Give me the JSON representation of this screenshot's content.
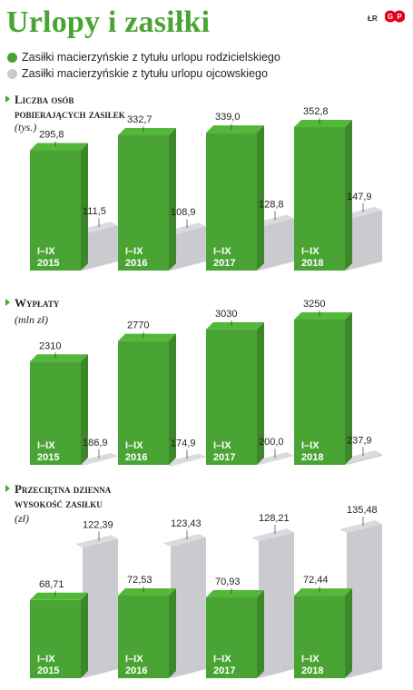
{
  "header": {
    "title": "Urlopy i zasiłki",
    "credit": "ŁR",
    "logo_text": "GP"
  },
  "legend": [
    {
      "label": "Zasiłki macierzyńskie z tytułu urlopu rodzicielskiego",
      "color": "#4aa433"
    },
    {
      "label": "Zasiłki macierzyńskie z tytułu urlopu ojcowskiego",
      "color": "#c9cbcf"
    }
  ],
  "chart_data": [
    {
      "type": "bar",
      "title_lines": [
        "Liczba osób",
        "pobierających zasiłek"
      ],
      "unit": "(tys.)",
      "categories": [
        [
          "I–IX",
          "2015"
        ],
        [
          "I–IX",
          "2016"
        ],
        [
          "I–IX",
          "2017"
        ],
        [
          "I–IX",
          "2018"
        ]
      ],
      "series": [
        {
          "name": "Zasiłki macierzyńskie z tytułu urlopu rodzicielskiego",
          "values": [
            295.8,
            332.7,
            339.0,
            352.8
          ],
          "labels": [
            "295,8",
            "332,7",
            "339,0",
            "352,8"
          ]
        },
        {
          "name": "Zasiłki macierzyńskie z tytułu urlopu ojcowskiego",
          "values": [
            111.5,
            108.9,
            128.8,
            147.9
          ],
          "labels": [
            "111,5",
            "108,9",
            "128,8",
            "147,9"
          ]
        }
      ]
    },
    {
      "type": "bar",
      "title_lines": [
        "Wypłaty"
      ],
      "unit": "(mln zł)",
      "categories": [
        [
          "I–IX",
          "2015"
        ],
        [
          "I–IX",
          "2016"
        ],
        [
          "I–IX",
          "2017"
        ],
        [
          "I–IX",
          "2018"
        ]
      ],
      "series": [
        {
          "name": "Zasiłki macierzyńskie z tytułu urlopu rodzicielskiego",
          "values": [
            2310,
            2770,
            3030,
            3250
          ],
          "labels": [
            "2310",
            "2770",
            "3030",
            "3250"
          ]
        },
        {
          "name": "Zasiłki macierzyńskie z tytułu urlopu ojcowskiego",
          "values": [
            186.9,
            174.9,
            200.0,
            237.9
          ],
          "labels": [
            "186,9",
            "174,9",
            "200,0",
            "237,9"
          ]
        }
      ]
    },
    {
      "type": "bar",
      "title_lines": [
        "Przeciętna dzienna",
        "wysokość zasiłku"
      ],
      "unit": "(zł)",
      "categories": [
        [
          "I–IX",
          "2015"
        ],
        [
          "I–IX",
          "2016"
        ],
        [
          "I–IX",
          "2017"
        ],
        [
          "I–IX",
          "2018"
        ]
      ],
      "series": [
        {
          "name": "Zasiłki macierzyńskie z tytułu urlopu rodzicielskiego",
          "values": [
            68.71,
            72.53,
            70.93,
            72.44
          ],
          "labels": [
            "68,71",
            "72,53",
            "70,93",
            "72,44"
          ]
        },
        {
          "name": "Zasiłki macierzyńskie z tytułu urlopu ojcowskiego",
          "values": [
            122.39,
            123.43,
            128.21,
            135.48
          ],
          "labels": [
            "122,39",
            "123,43",
            "128,21",
            "135,48"
          ]
        }
      ]
    }
  ]
}
